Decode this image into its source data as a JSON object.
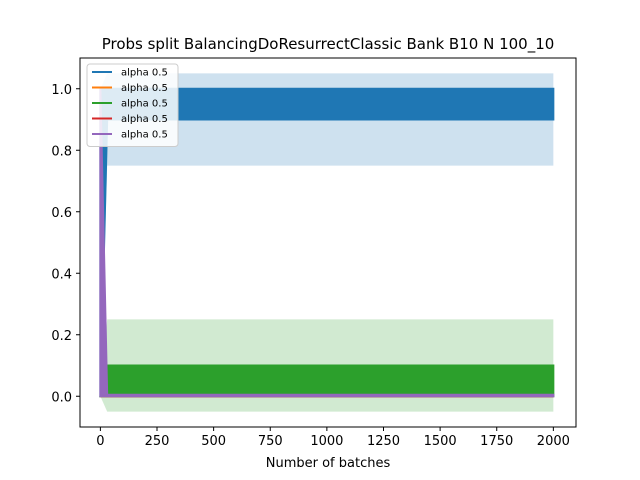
{
  "chart_data": {
    "type": "line",
    "title": "Probs split BalancingDoResurrectClassic Bank B10 N 100_10",
    "xlabel": "Number of batches",
    "ylabel": "",
    "xlim": [
      -90,
      2100
    ],
    "ylim": [
      -0.1,
      1.1
    ],
    "xticks": [
      0,
      250,
      500,
      750,
      1000,
      1250,
      1500,
      1750,
      2000
    ],
    "yticks": [
      0.0,
      0.2,
      0.4,
      0.6,
      0.8,
      1.0
    ],
    "ytick_labels": [
      "0.0",
      "0.2",
      "0.4",
      "0.6",
      "0.8",
      "1.0"
    ],
    "grid": false,
    "legend_position": "top-left",
    "series": [
      {
        "name": "alpha 0.5",
        "color": "#1f77b4",
        "x": [
          0,
          30,
          2000
        ],
        "band_low": [
          0.0,
          0.75,
          0.75
        ],
        "band_high": [
          1.0,
          1.05,
          1.05
        ],
        "line_low": [
          0.0,
          0.9,
          0.9
        ],
        "line_high": [
          1.0,
          1.0,
          1.0
        ]
      },
      {
        "name": "alpha 0.5",
        "color": "#ff7f0e",
        "x": [
          0,
          30,
          2000
        ],
        "band_low": [
          0.0,
          0.0,
          0.0
        ],
        "band_high": [
          0.0,
          0.0,
          0.0
        ],
        "line_low": [
          0.0,
          0.0,
          0.0
        ],
        "line_high": [
          0.0,
          0.0,
          0.0
        ]
      },
      {
        "name": "alpha 0.5",
        "color": "#2ca02c",
        "x": [
          0,
          30,
          2000
        ],
        "band_low": [
          0.0,
          -0.05,
          -0.05
        ],
        "band_high": [
          0.0,
          0.25,
          0.25
        ],
        "line_low": [
          0.0,
          0.0,
          0.0
        ],
        "line_high": [
          0.0,
          0.1,
          0.1
        ]
      },
      {
        "name": "alpha 0.5",
        "color": "#d62728",
        "x": [
          0,
          30,
          2000
        ],
        "band_low": [
          0.0,
          0.0,
          0.0
        ],
        "band_high": [
          0.0,
          0.0,
          0.0
        ],
        "line_low": [
          0.0,
          0.0,
          0.0
        ],
        "line_high": [
          0.0,
          0.0,
          0.0
        ]
      },
      {
        "name": "alpha 0.5",
        "color": "#9467bd",
        "x": [
          0,
          30,
          2000
        ],
        "band_low": [
          0.0,
          0.0,
          0.0
        ],
        "band_high": [
          1.0,
          0.0,
          0.0
        ],
        "line_low": [
          0.0,
          0.0,
          0.0
        ],
        "line_high": [
          1.0,
          0.005,
          0.005
        ]
      }
    ]
  }
}
